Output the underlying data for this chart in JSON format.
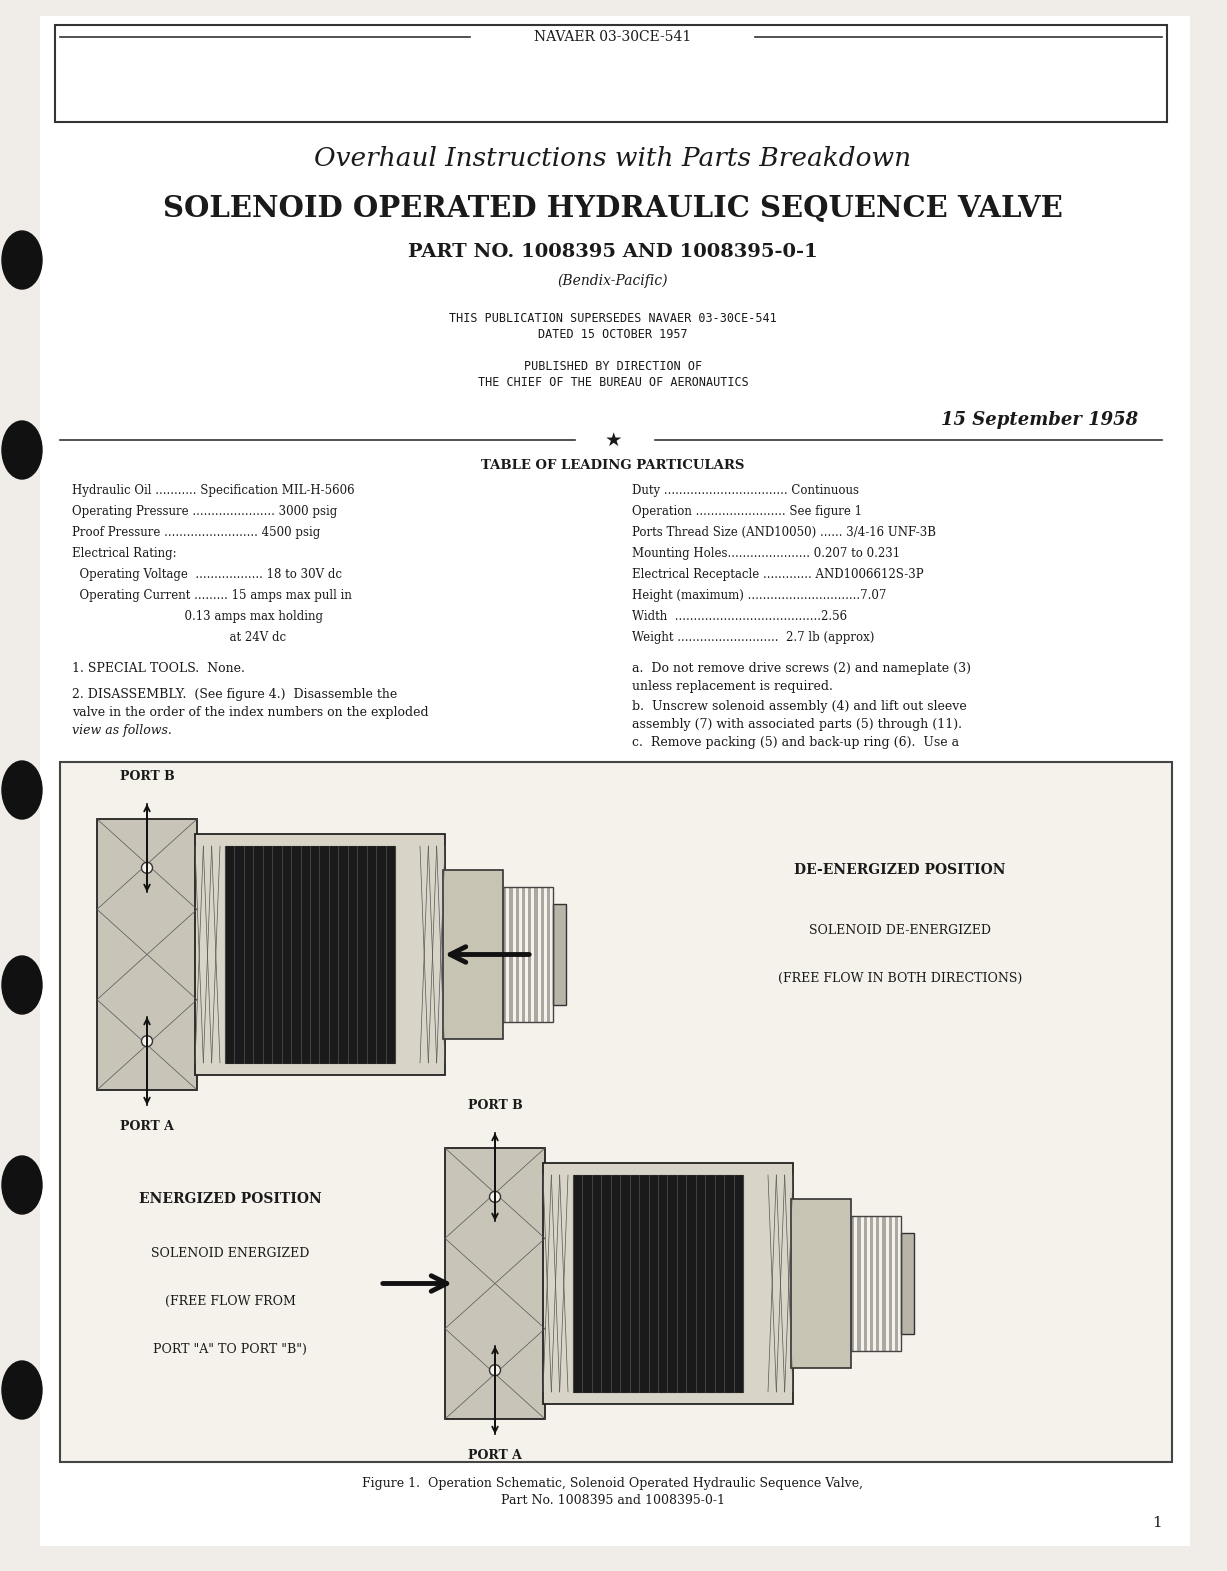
{
  "bg_color": "#f0ede8",
  "page_bg": "#ffffff",
  "header_line_text": "NAVAER 03-30CE-541",
  "title1": "Overhaul Instructions with Parts Breakdown",
  "title2": "SOLENOID OPERATED HYDRAULIC SEQUENCE VALVE",
  "title3": "PART NO. 1008395 AND 1008395-0-1",
  "title4": "(Bendix-Pacific)",
  "pub_line1": "THIS PUBLICATION SUPERSEDES NAVAER 03-30CE-541",
  "pub_line2": "DATED 15 OCTOBER 1957",
  "pub_line3": "PUBLISHED BY DIRECTION OF",
  "pub_line4": "THE CHIEF OF THE BUREAU OF AERONAUTICS",
  "date_text": "15 September 1958",
  "table_title": "TABLE OF LEADING PARTICULARS",
  "left_col": [
    "Hydraulic Oil ........... Specification MIL-H-5606",
    "Operating Pressure ...................... 3000 psig",
    "Proof Pressure ......................... 4500 psig",
    "Electrical Rating:",
    "  Operating Voltage  .................. 18 to 30V dc",
    "  Operating Current ......... 15 amps max pull in",
    "                              0.13 amps max holding",
    "                                          at 24V dc"
  ],
  "right_col": [
    "Duty ................................. Continuous",
    "Operation ........................ See figure 1",
    "Ports Thread Size (AND10050) ...... 3/4-16 UNF-3B",
    "Mounting Holes...................... 0.207 to 0.231",
    "Electrical Receptacle ............. AND1006612S-3P",
    "Height (maximum) ..............................7.07",
    "Width  .......................................2.56",
    "Weight ...........................  2.7 lb (approx)"
  ],
  "special_tools": "1. SPECIAL TOOLS.  None.",
  "disassembly_line1": "2. DISASSEMBLY.  (See figure 4.)  Disassemble the",
  "disassembly_line2": "valve in the order of the index numbers on the exploded",
  "disassembly_line3": "view as follows.",
  "right_text_a1": "a.  Do not remove drive screws (2) and nameplate (3)",
  "right_text_a2": "unless replacement is required.",
  "right_text_b1": "b.  Unscrew solenoid assembly (4) and lift out sleeve",
  "right_text_b2": "assembly (7) with associated parts (5) through (11).",
  "right_text_b3": "c.  Remove packing (5) and back-up ring (6).  Use a",
  "de_energized_title": "DE-ENERGIZED POSITION",
  "de_energized_sub1": "SOLENOID DE-ENERGIZED",
  "de_energized_sub2": "(FREE FLOW IN BOTH DIRECTIONS)",
  "energized_title": "ENERGIZED POSITION",
  "energized_sub1": "SOLENOID ENERGIZED",
  "energized_sub2": "(FREE FLOW FROM",
  "energized_sub3": "PORT \"A\" TO PORT \"B\")",
  "port_b_top": "PORT B",
  "port_a_top": "PORT A",
  "port_b_bot": "PORT B",
  "port_a_bot": "PORT A",
  "fig_caption1": "Figure 1.  Operation Schematic, Solenoid Operated Hydraulic Sequence Valve,",
  "fig_caption2": "Part No. 1008395 and 1008395-0-1",
  "page_number": "1",
  "text_color": "#1a1a1a",
  "border_color": "#333333",
  "figure_bg": "#f5f2ec"
}
